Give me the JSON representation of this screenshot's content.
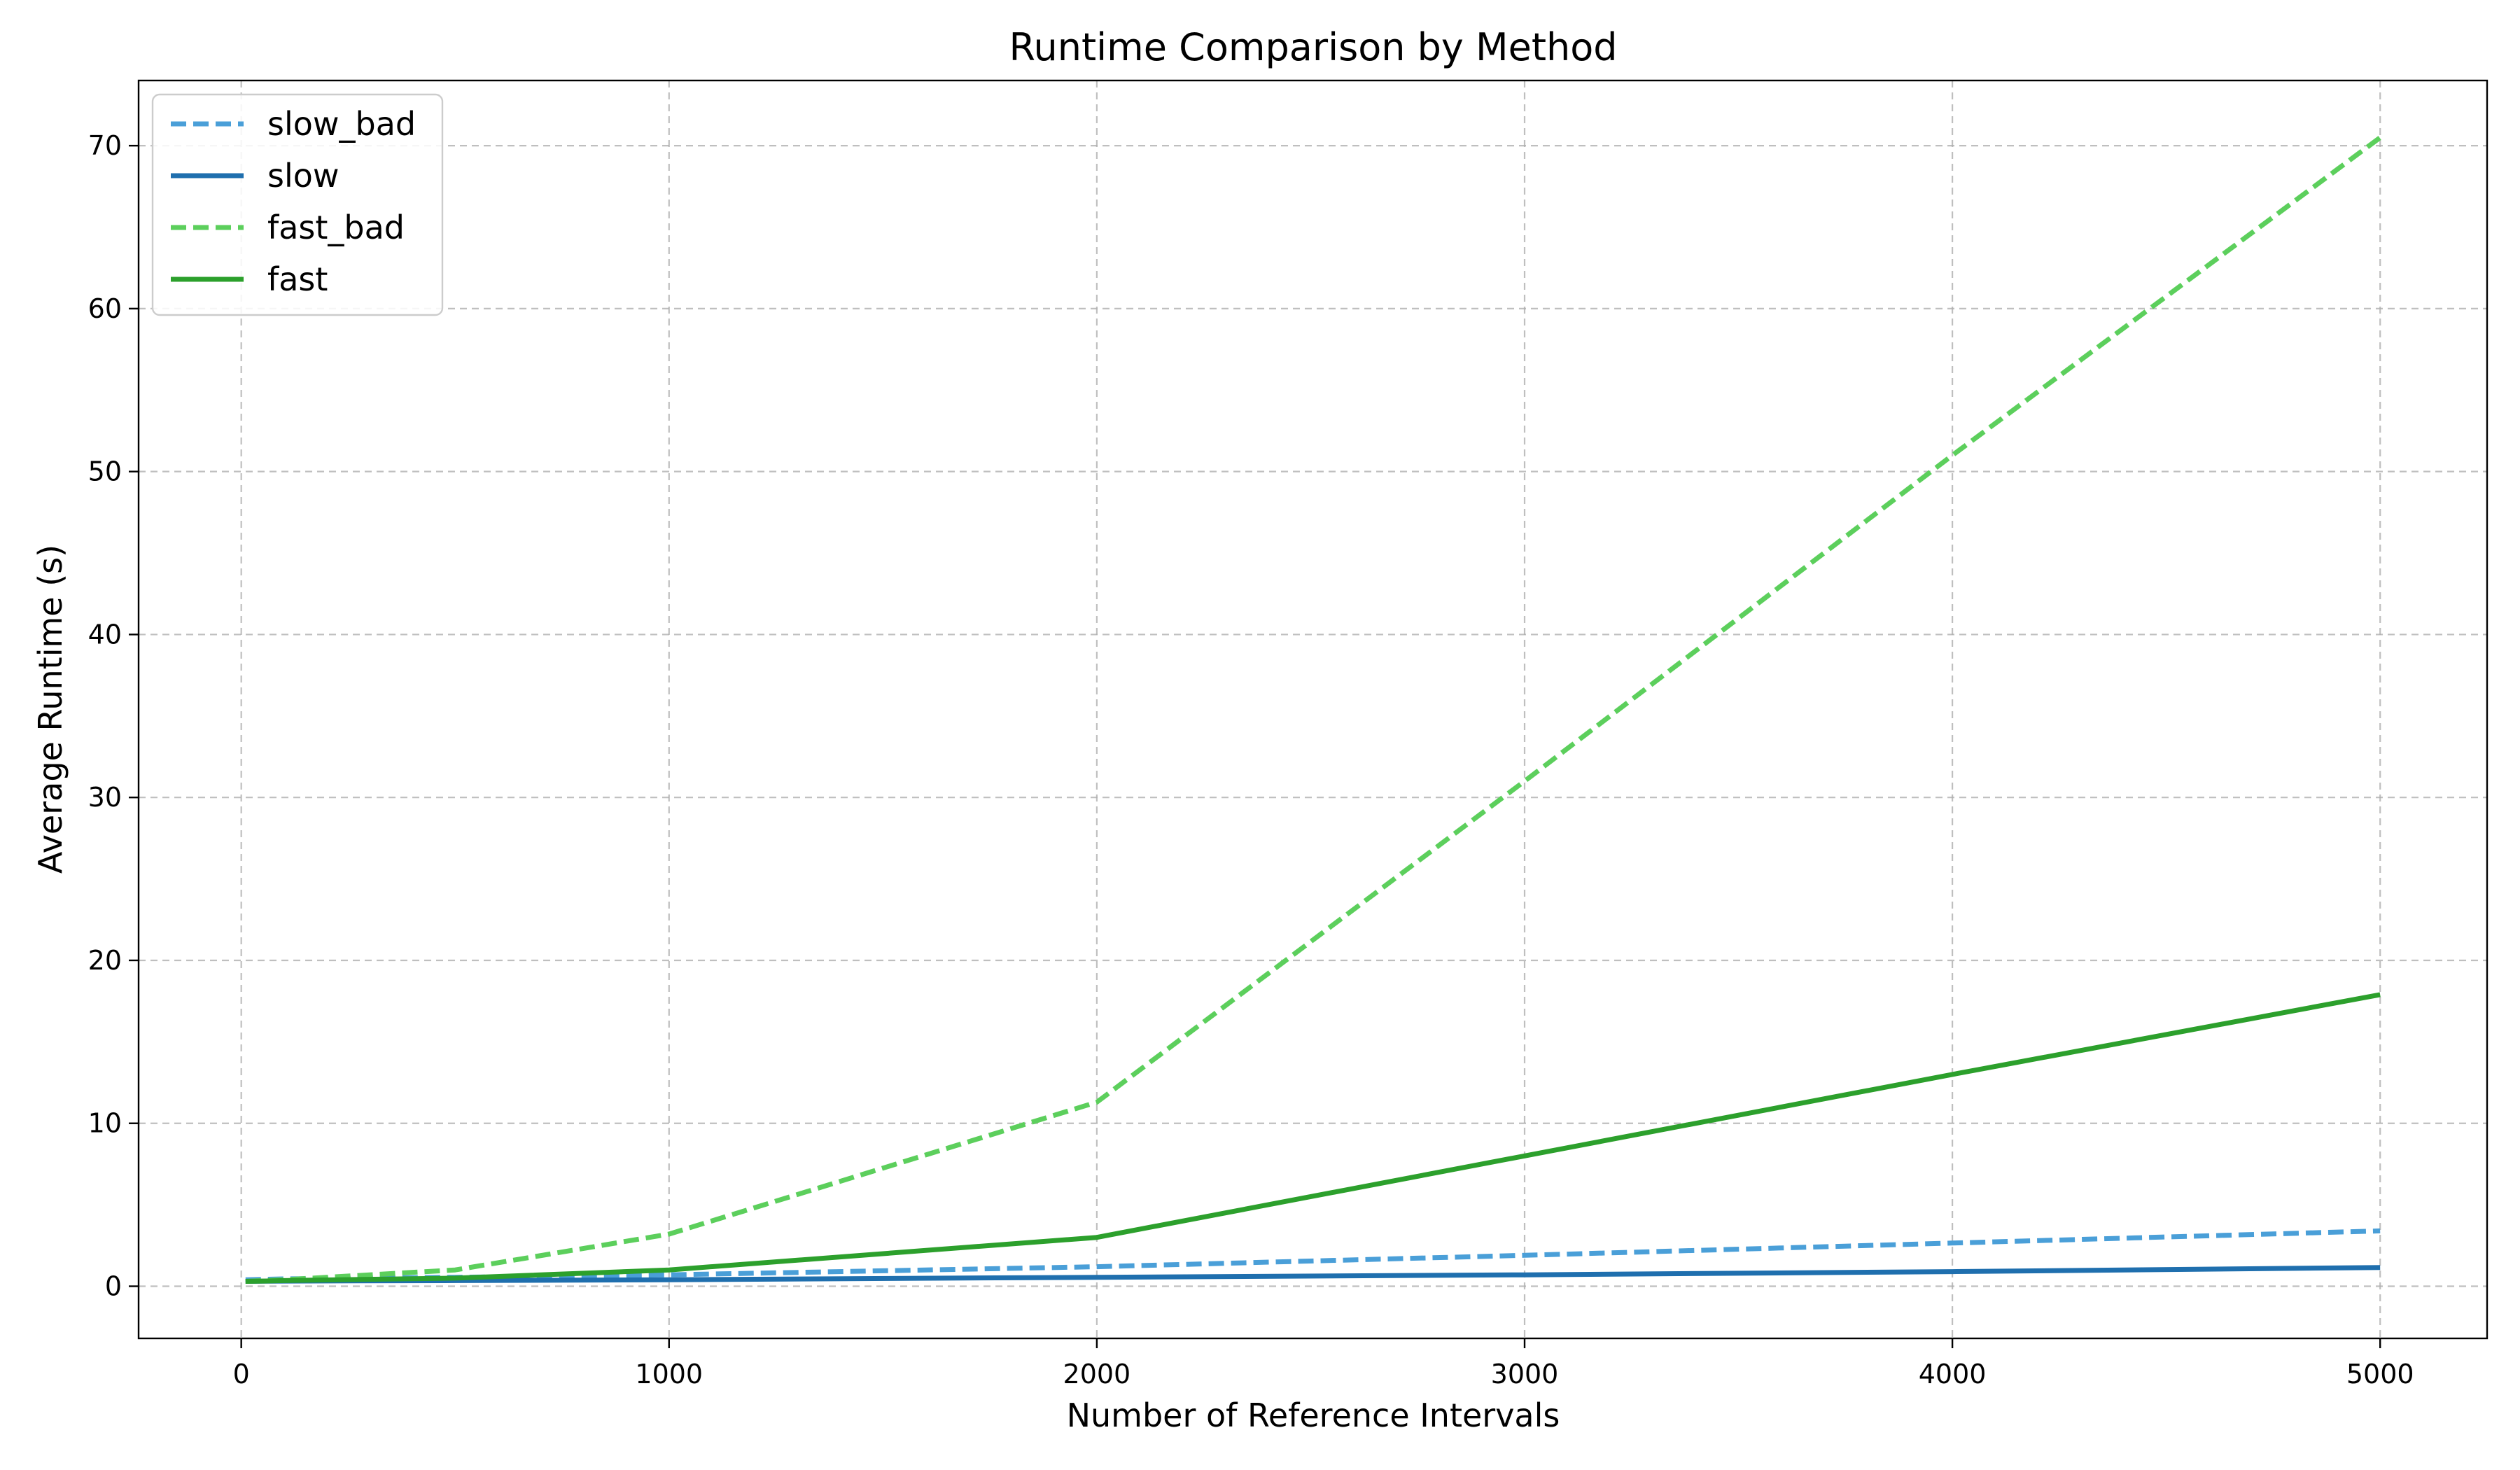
{
  "chart_data": {
    "type": "line",
    "title": "Runtime Comparison by Method",
    "xlabel": "Number of Reference Intervals",
    "ylabel": "Average Runtime (s)",
    "xlim": [
      -240,
      5250
    ],
    "ylim": [
      -3.2,
      74
    ],
    "xticks": [
      0,
      1000,
      2000,
      3000,
      4000,
      5000
    ],
    "yticks": [
      0,
      10,
      20,
      30,
      40,
      50,
      60,
      70
    ],
    "grid": true,
    "legend_position": "top-left",
    "series": [
      {
        "name": "slow_bad",
        "color": "#4a9fd8",
        "style": "dashed",
        "x": [
          10,
          50,
          100,
          500,
          1000,
          2000,
          3000,
          4000,
          5000
        ],
        "y": [
          0.4,
          0.42,
          0.45,
          0.55,
          0.7,
          1.2,
          1.9,
          2.65,
          3.4
        ]
      },
      {
        "name": "slow",
        "color": "#1f6fae",
        "style": "solid",
        "x": [
          10,
          50,
          100,
          500,
          1000,
          2000,
          3000,
          4000,
          5000
        ],
        "y": [
          0.3,
          0.31,
          0.32,
          0.35,
          0.4,
          0.55,
          0.7,
          0.9,
          1.15
        ]
      },
      {
        "name": "fast_bad",
        "color": "#5ccf5c",
        "style": "dashed",
        "x": [
          10,
          50,
          100,
          500,
          1000,
          2000,
          3000,
          4000,
          5000
        ],
        "y": [
          0.3,
          0.35,
          0.4,
          1.0,
          3.2,
          11.3,
          31.0,
          51.0,
          70.5
        ]
      },
      {
        "name": "fast",
        "color": "#2ca02c",
        "style": "solid",
        "x": [
          10,
          50,
          100,
          500,
          1000,
          2000,
          3000,
          4000,
          5000
        ],
        "y": [
          0.3,
          0.32,
          0.35,
          0.5,
          1.0,
          3.0,
          8.0,
          13.0,
          17.9
        ]
      }
    ]
  }
}
